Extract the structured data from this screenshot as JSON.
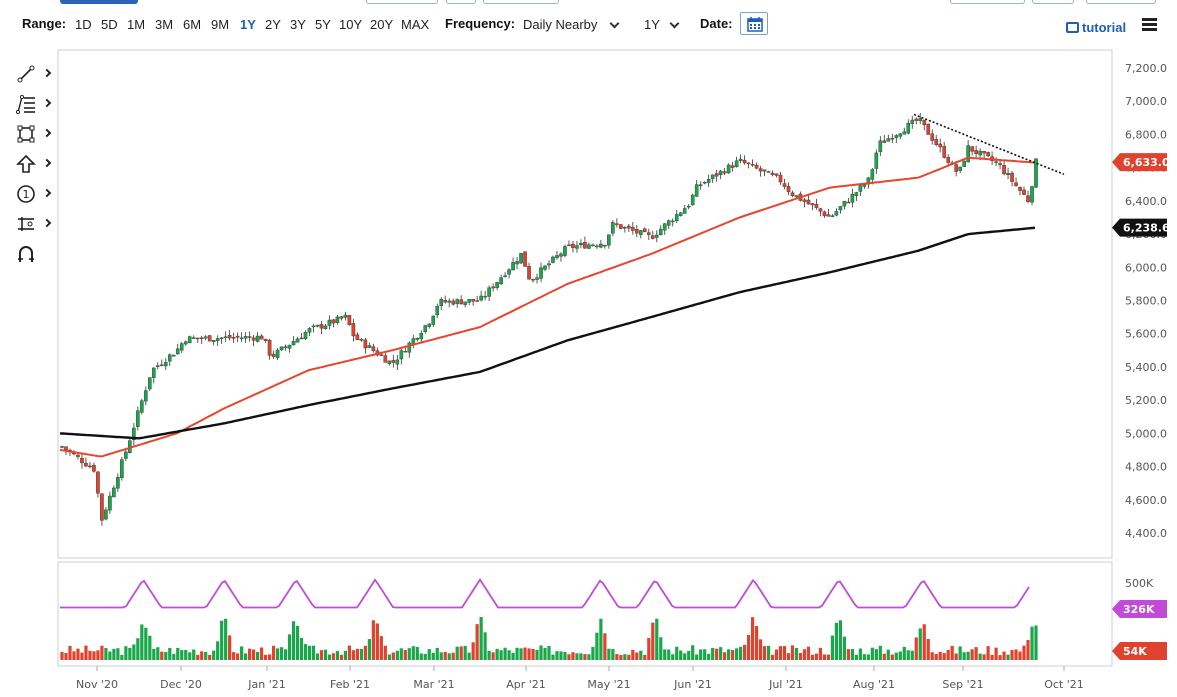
{
  "toolbar": {
    "range_label": "Range:",
    "ranges": [
      "1D",
      "5D",
      "1M",
      "3M",
      "6M",
      "9M",
      "1Y",
      "2Y",
      "3Y",
      "5Y",
      "10Y",
      "20Y",
      "MAX"
    ],
    "active_range": "1Y",
    "frequency_label": "Frequency:",
    "frequency_value": "Daily Nearby",
    "period_value": "1Y",
    "date_label": "Date:",
    "tutorial_label": "tutorial"
  },
  "left_tools": [
    "line-tool-icon",
    "fibonacci-tool-icon",
    "rectangle-tool-icon",
    "arrow-tool-icon",
    "annotation-tool-icon",
    "ruler-tool-icon",
    "magnet-icon"
  ],
  "chart_data": {
    "type": "candlestick",
    "price_axis": {
      "ylim": [
        4300,
        7300
      ],
      "ticks": [
        4400,
        4600,
        4800,
        5000,
        5200,
        5400,
        5600,
        5800,
        6000,
        6200,
        6400,
        6600,
        6800,
        7000,
        7200
      ],
      "tick_labels": [
        "4,400.0",
        "4,600.0",
        "4,800.0",
        "5,000.0",
        "5,200.0",
        "5,400.0",
        "5,600.0",
        "5,800.0",
        "6,000.0",
        "6,200.0",
        "6,400.0",
        "6,600.0",
        "6,800.0",
        "7,000.0",
        "7,200.0"
      ]
    },
    "x_labels": [
      "Nov '20",
      "Dec '20",
      "Jan '21",
      "Feb '21",
      "Mar '21",
      "Apr '21",
      "May '21",
      "Jun '21",
      "Jul '21",
      "Aug '21",
      "Sep '21",
      "Oct '21"
    ],
    "close_path": [
      [
        "Oct '20",
        4920
      ],
      [
        "Oct '20",
        4780
      ],
      [
        "Nov '20",
        4470
      ],
      [
        "Nov '20",
        4900
      ],
      [
        "Nov '20",
        5380
      ],
      [
        "Nov '20",
        5500
      ],
      [
        "Dec '20",
        5570
      ],
      [
        "Dec '20",
        5580
      ],
      [
        "Jan '21",
        5460
      ],
      [
        "Jan '21",
        5620
      ],
      [
        "Jan '21",
        5700
      ],
      [
        "Feb '21",
        5580
      ],
      [
        "Feb '21",
        5420
      ],
      [
        "Feb '21",
        5680
      ],
      [
        "Mar '21",
        5790
      ],
      [
        "Mar '21",
        5800
      ],
      [
        "Mar '21",
        6080
      ],
      [
        "Apr '21",
        5920
      ],
      [
        "Apr '21",
        6120
      ],
      [
        "Apr '21",
        6150
      ],
      [
        "May '21",
        6260
      ],
      [
        "May '21",
        6180
      ],
      [
        "May '21",
        6380
      ],
      [
        "Jun '21",
        6490
      ],
      [
        "Jun '21",
        6640
      ],
      [
        "Jun '21",
        6520
      ],
      [
        "Jul '21",
        6450
      ],
      [
        "Jul '21",
        6300
      ],
      [
        "Jul '21",
        6530
      ],
      [
        "Aug '21",
        6740
      ],
      [
        "Aug '21",
        6890
      ],
      [
        "Aug '21",
        6560
      ],
      [
        "Sep '21",
        6720
      ],
      [
        "Sep '21",
        6620
      ],
      [
        "Sep '21",
        6400
      ],
      [
        "Sep '21",
        6633
      ]
    ],
    "sma_fast": [
      [
        "Oct '20",
        4900
      ],
      [
        "Nov '20",
        4860
      ],
      [
        "Nov '20",
        5000
      ],
      [
        "Dec '20",
        5150
      ],
      [
        "Jan '21",
        5380
      ],
      [
        "Feb '21",
        5500
      ],
      [
        "Mar '21",
        5640
      ],
      [
        "Apr '21",
        5900
      ],
      [
        "May '21",
        6080
      ],
      [
        "Jun '21",
        6300
      ],
      [
        "Jul '21",
        6480
      ],
      [
        "Aug '21",
        6540
      ],
      [
        "Sep '21",
        6660
      ],
      [
        "Sep '21",
        6630
      ]
    ],
    "sma_slow": [
      [
        "Oct '20",
        5000
      ],
      [
        "Nov '20",
        4970
      ],
      [
        "Dec '20",
        5060
      ],
      [
        "Jan '21",
        5170
      ],
      [
        "Feb '21",
        5270
      ],
      [
        "Mar '21",
        5370
      ],
      [
        "Apr '21",
        5560
      ],
      [
        "May '21",
        5700
      ],
      [
        "Jun '21",
        5850
      ],
      [
        "Jul '21",
        5970
      ],
      [
        "Aug '21",
        6100
      ],
      [
        "Sep '21",
        6200
      ],
      [
        "Sep '21",
        6238.6
      ]
    ],
    "trendline": {
      "from": [
        "Aug '21",
        6920
      ],
      "to": [
        "Oct '21",
        6560
      ],
      "style": "dotted"
    },
    "last_price": "6,633.0",
    "slow_sma_value": "6,238.6",
    "volume": {
      "ylim": [
        0,
        520000
      ],
      "tick_labels": [
        "500K"
      ],
      "avg_value": "326K",
      "last_value": "54K"
    },
    "colors": {
      "up": "#1aa64a",
      "down": "#e0432d",
      "sma_fast": "#e8452f",
      "sma_slow": "#111111",
      "avg_volume": "#c14bd6"
    },
    "grid": false
  }
}
